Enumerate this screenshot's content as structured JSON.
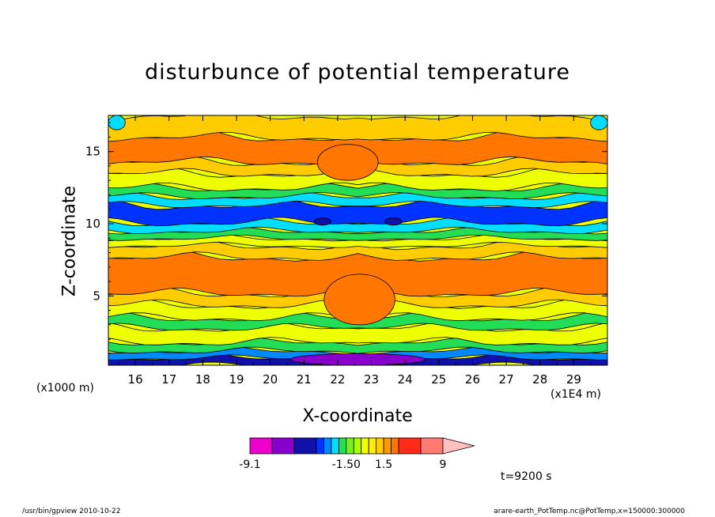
{
  "chart_data": {
    "type": "heatmap",
    "title": "disturbunce of potential temperature",
    "xlabel": "X-coordinate",
    "ylabel": "Z-coordinate",
    "x_unit": "(x1E4 m)",
    "y_unit": "(x1000 m)",
    "xlim": [
      15.2,
      30.0
    ],
    "ylim": [
      0.2,
      17.5
    ],
    "x_ticks": [
      16,
      17,
      18,
      19,
      20,
      21,
      22,
      23,
      24,
      25,
      26,
      27,
      28,
      29
    ],
    "y_ticks": [
      5,
      10,
      15
    ],
    "grid": false,
    "symmetry_axis_x": 22.6,
    "colorbar": {
      "levels": [
        -9.1,
        -7.5,
        -6,
        -4.5,
        -3,
        -2.5,
        -2,
        -1.5,
        -0.5,
        0,
        0.5,
        1,
        1.5,
        3,
        4.5,
        6,
        7.5,
        9
      ],
      "colors": [
        "#ee00cc",
        "#8800cc",
        "#1010aa",
        "#0033ff",
        "#0088ff",
        "#00ddff",
        "#22dd55",
        "#77ee22",
        "#aaff00",
        "#eeff00",
        "#ffee00",
        "#ffcc00",
        "#ff9900",
        "#ff7700",
        "#ff2a1a",
        "#ff7a70",
        "#ffc0c0"
      ],
      "labels": [
        "-9.1",
        "-1.50",
        "1.5",
        "9"
      ]
    },
    "layers": [
      {
        "z": [
          0.2,
          0.7
        ],
        "value": -6.0,
        "color": "#1010aa"
      },
      {
        "z": [
          0.7,
          1.2
        ],
        "value": -3.0,
        "color": "#0088ff"
      },
      {
        "z": [
          1.2,
          1.8
        ],
        "value": -1.0,
        "color": "#22dd55"
      },
      {
        "z": [
          1.8,
          2.8
        ],
        "value": 0.3,
        "color": "#eeff00"
      },
      {
        "z": [
          2.8,
          3.5
        ],
        "value": -1.0,
        "color": "#22dd55"
      },
      {
        "z": [
          3.5,
          4.4
        ],
        "value": 0.3,
        "color": "#eeff00"
      },
      {
        "z": [
          4.4,
          5.2
        ],
        "value": 1.2,
        "color": "#ffcc00"
      },
      {
        "z": [
          5.2,
          7.7
        ],
        "value": 2.5,
        "color": "#ff7700"
      },
      {
        "z": [
          7.7,
          8.5
        ],
        "value": 1.2,
        "color": "#ffcc00"
      },
      {
        "z": [
          8.5,
          9.0
        ],
        "value": 0.3,
        "color": "#eeff00"
      },
      {
        "z": [
          9.0,
          9.5
        ],
        "value": -1.0,
        "color": "#22dd55"
      },
      {
        "z": [
          9.5,
          10.1
        ],
        "value": -2.5,
        "color": "#00ddff"
      },
      {
        "z": [
          10.1,
          11.3
        ],
        "value": -4.5,
        "color": "#0033ff"
      },
      {
        "z": [
          11.3,
          11.9
        ],
        "value": -2.5,
        "color": "#00ddff"
      },
      {
        "z": [
          11.9,
          12.5
        ],
        "value": -1.0,
        "color": "#22dd55"
      },
      {
        "z": [
          12.5,
          13.5
        ],
        "value": 0.3,
        "color": "#eeff00"
      },
      {
        "z": [
          13.5,
          14.3
        ],
        "value": 1.2,
        "color": "#ffcc00"
      },
      {
        "z": [
          14.3,
          16.0
        ],
        "value": 2.5,
        "color": "#ff7700"
      },
      {
        "z": [
          16.0,
          17.5
        ],
        "value": 1.2,
        "color": "#ffcc00"
      }
    ],
    "features": [
      {
        "x": [
          20.6,
          24.6
        ],
        "z": [
          1.0,
          0.2
        ],
        "value": -7.5,
        "color": "#8800cc"
      },
      {
        "x": [
          21.3,
          21.8
        ],
        "z": [
          9.9,
          10.4
        ],
        "value": -6.0,
        "color": "#1010aa"
      },
      {
        "x": [
          23.4,
          23.9
        ],
        "z": [
          9.9,
          10.4
        ],
        "value": -6.0,
        "color": "#1010aa"
      },
      {
        "x": [
          21.6,
          23.7
        ],
        "z": [
          3.0,
          6.5
        ],
        "value": 2.5,
        "color": "#ff7700"
      },
      {
        "x": [
          21.4,
          23.2
        ],
        "z": [
          13.0,
          15.5
        ],
        "value": 3.0,
        "color": "#ff7700"
      },
      {
        "x": [
          15.2,
          15.7
        ],
        "z": [
          16.5,
          17.5
        ],
        "value": -2.5,
        "color": "#00ddff"
      },
      {
        "x": [
          29.5,
          30.0
        ],
        "z": [
          16.5,
          17.5
        ],
        "value": -2.5,
        "color": "#00ddff"
      }
    ],
    "annotation": "t=9200 s"
  },
  "footer": {
    "left": "/usr/bin/gpview   2010-10-22",
    "right": "arare-earth_PotTemp.nc@PotTemp,x=150000:300000"
  }
}
